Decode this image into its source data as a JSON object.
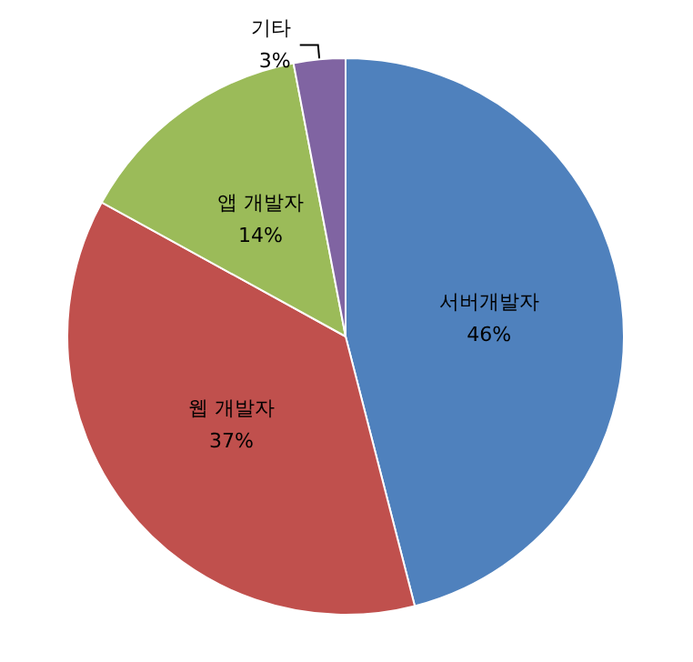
{
  "chart_data": {
    "type": "pie",
    "categories": [
      "서버개발자",
      "웹 개발자",
      "앱 개발자",
      "기타"
    ],
    "values": [
      46,
      37,
      14,
      3
    ],
    "value_labels": [
      "46%",
      "37%",
      "14%",
      "3%"
    ],
    "colors": [
      "#4f81bd",
      "#c0504d",
      "#9bbb59",
      "#8064a2"
    ],
    "legend": false
  }
}
